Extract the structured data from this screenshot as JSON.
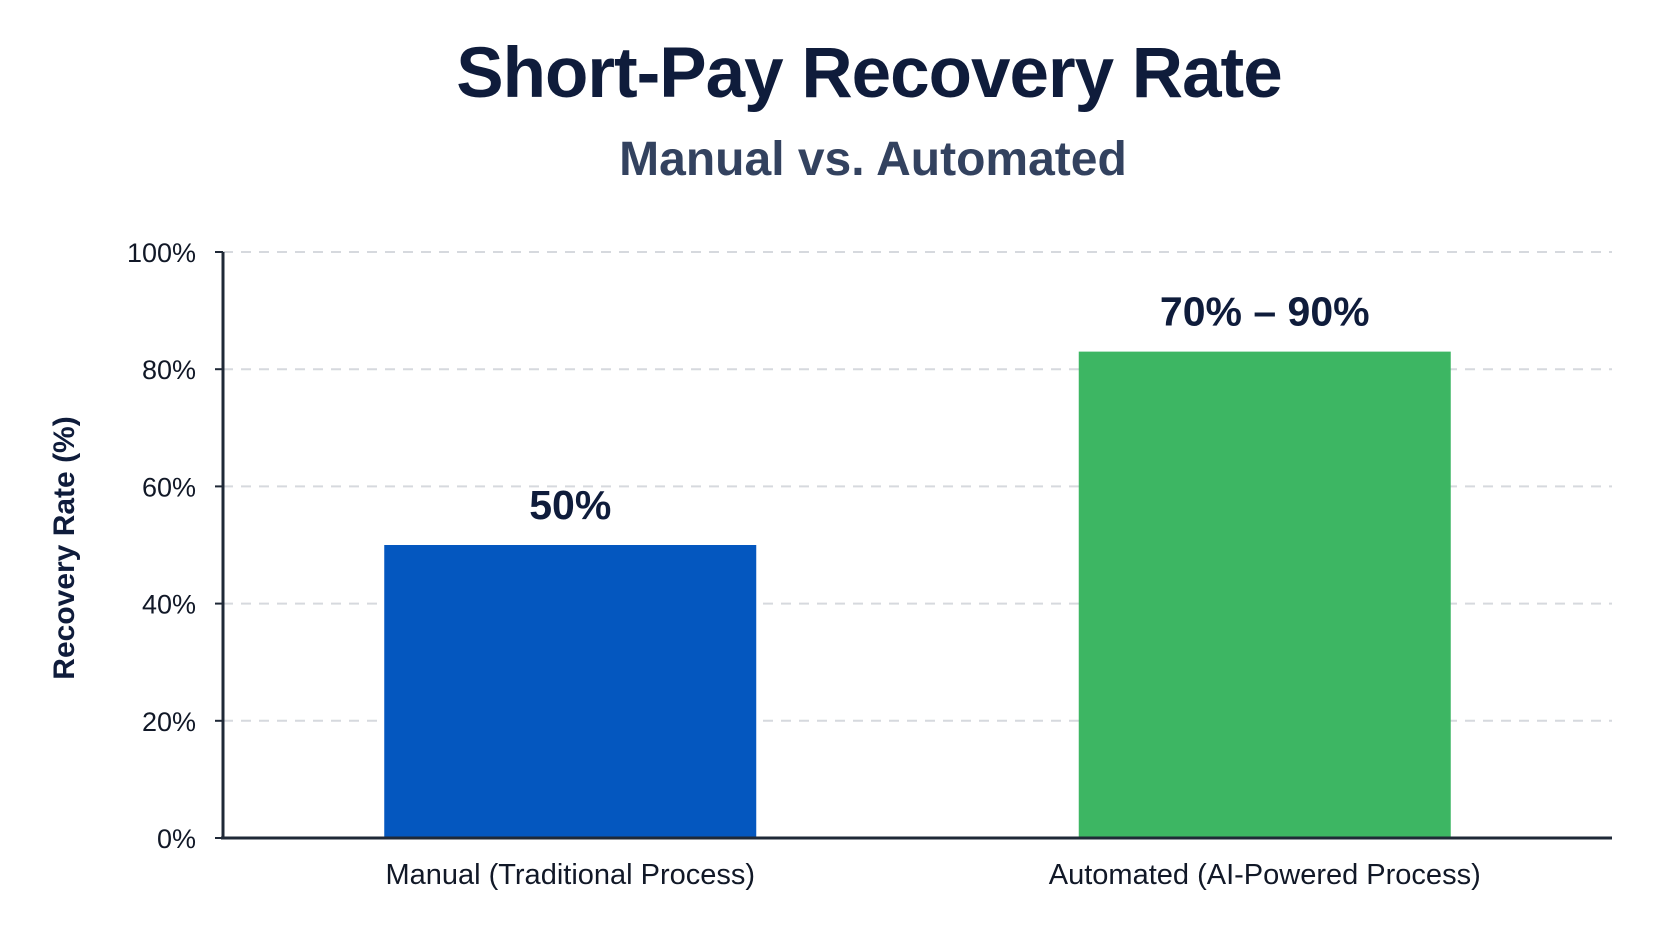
{
  "chart_data": {
    "type": "bar",
    "title": "Short-Pay Recovery Rate",
    "subtitle": "Manual vs. Automated",
    "xlabel": "",
    "ylabel": "Recovery Rate (%)",
    "ylim": [
      0,
      100
    ],
    "yticks": [
      0,
      20,
      40,
      60,
      80,
      100
    ],
    "ytick_labels": [
      "0%",
      "20%",
      "40%",
      "60%",
      "80%",
      "100%"
    ],
    "categories": [
      "Manual (Traditional Process)",
      "Automated (AI-Powered Process)"
    ],
    "values": [
      50,
      83
    ],
    "data_labels": [
      "50%",
      "70% – 90%"
    ],
    "colors": [
      "#0457bf",
      "#3db663"
    ],
    "grid": true,
    "grid_style": "dashed horizontal",
    "legend": "none"
  }
}
